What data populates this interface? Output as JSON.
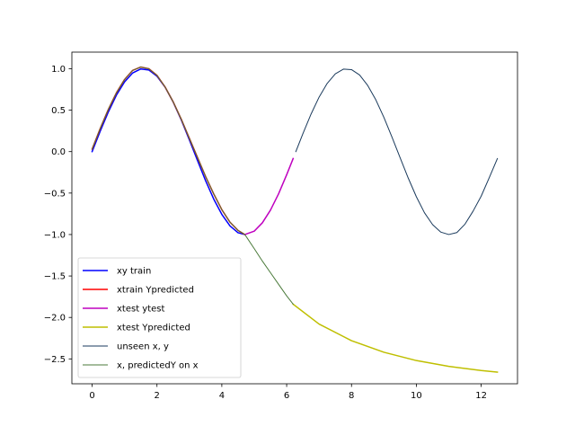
{
  "chart_data": {
    "type": "line",
    "title": "",
    "xlabel": "",
    "ylabel": "",
    "xlim": [
      -0.625,
      13.12
    ],
    "ylim": [
      -2.8,
      1.2
    ],
    "xticks": [
      0,
      2,
      4,
      6,
      8,
      10,
      12
    ],
    "xtick_labels": [
      "0",
      "2",
      "4",
      "6",
      "8",
      "10",
      "12"
    ],
    "yticks": [
      1.0,
      0.5,
      0.0,
      -0.5,
      -1.0,
      -1.5,
      -2.0,
      -2.5
    ],
    "ytick_labels": [
      "1.0",
      "0.5",
      "0.0",
      "−0.5",
      "−1.0",
      "−1.5",
      "−2.0",
      "−2.5"
    ],
    "grid": false,
    "legend_position": "lower-left",
    "series": [
      {
        "name": "xy train",
        "color": "#0000ff",
        "width": 1.5,
        "x": [
          0,
          0.25,
          0.5,
          0.75,
          1.0,
          1.25,
          1.5,
          1.75,
          2.0,
          2.25,
          2.5,
          2.75,
          3.0,
          3.25,
          3.5,
          3.75,
          4.0,
          4.25,
          4.5,
          4.71
        ],
        "y": [
          0,
          0.247,
          0.479,
          0.682,
          0.841,
          0.949,
          0.997,
          0.984,
          0.909,
          0.778,
          0.598,
          0.382,
          0.141,
          -0.108,
          -0.351,
          -0.572,
          -0.757,
          -0.895,
          -0.978,
          -1.0
        ]
      },
      {
        "name": "xtrain Ypredicted",
        "color": "#ff0000",
        "width": 1.5,
        "x": [
          0,
          0.25,
          0.5,
          0.75,
          1.0,
          1.25,
          1.5,
          1.75,
          2.0,
          2.25,
          2.5,
          2.75,
          3.0,
          3.25,
          3.5,
          3.75,
          4.0,
          4.25,
          4.5,
          4.71
        ],
        "y": [
          0.03,
          0.28,
          0.51,
          0.71,
          0.87,
          0.98,
          1.02,
          1.0,
          0.92,
          0.78,
          0.6,
          0.39,
          0.16,
          -0.07,
          -0.3,
          -0.51,
          -0.7,
          -0.85,
          -0.95,
          -1.0
        ]
      },
      {
        "name": "xtest ytest",
        "color": "#bf00bf",
        "width": 1.5,
        "x": [
          4.71,
          5.0,
          5.25,
          5.5,
          5.75,
          6.0,
          6.2
        ],
        "y": [
          -1.0,
          -0.959,
          -0.859,
          -0.706,
          -0.509,
          -0.279,
          -0.083
        ]
      },
      {
        "name": "xtest Ypredicted",
        "color": "#bfbf00",
        "width": 1.5,
        "x": [
          6.2,
          7.0,
          8.0,
          9.0,
          10.0,
          11.0,
          12.0,
          12.5
        ],
        "y": [
          -1.84,
          -2.08,
          -2.28,
          -2.42,
          -2.52,
          -2.59,
          -2.64,
          -2.66
        ]
      },
      {
        "name": "unseen x, y",
        "color": "#1a3a5c",
        "width": 1.0,
        "x": [
          6.283,
          6.5,
          6.75,
          7.0,
          7.25,
          7.5,
          7.75,
          8.0,
          8.25,
          8.5,
          8.75,
          9.0,
          9.25,
          9.5,
          9.75,
          10.0,
          10.25,
          10.5,
          10.75,
          11.0,
          11.25,
          11.5,
          11.75,
          12.0,
          12.25,
          12.5
        ],
        "y": [
          0.0,
          0.215,
          0.451,
          0.657,
          0.823,
          0.938,
          0.995,
          0.989,
          0.924,
          0.798,
          0.625,
          0.412,
          0.173,
          -0.075,
          -0.319,
          -0.544,
          -0.737,
          -0.88,
          -0.97,
          -1.0,
          -0.976,
          -0.875,
          -0.718,
          -0.537,
          -0.313,
          -0.083
        ]
      },
      {
        "name": "x, predictedY on x",
        "color": "#4a7a3a",
        "width": 1.0,
        "x": [
          0,
          0.25,
          0.5,
          0.75,
          1.0,
          1.25,
          1.5,
          1.75,
          2.0,
          2.25,
          2.5,
          2.75,
          3.0,
          3.25,
          3.5,
          3.75,
          4.0,
          4.25,
          4.5,
          4.71,
          5.0,
          5.25,
          5.5,
          5.75,
          6.0,
          6.2
        ],
        "y": [
          0.03,
          0.28,
          0.51,
          0.71,
          0.87,
          0.98,
          1.02,
          1.0,
          0.92,
          0.78,
          0.6,
          0.39,
          0.16,
          -0.07,
          -0.3,
          -0.51,
          -0.7,
          -0.85,
          -0.95,
          -1.0,
          -1.17,
          -1.32,
          -1.46,
          -1.6,
          -1.74,
          -1.84
        ]
      }
    ]
  }
}
